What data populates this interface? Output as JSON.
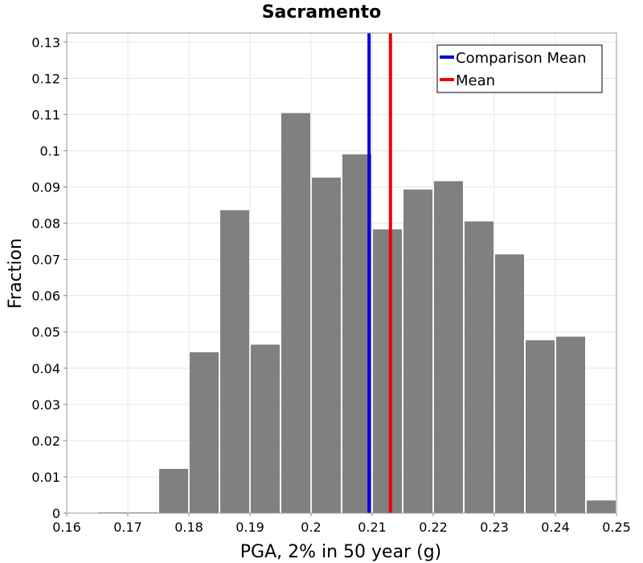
{
  "chart_data": {
    "type": "bar",
    "title": "Sacramento",
    "xlabel": "PGA, 2% in 50 year (g)",
    "ylabel": "Fraction",
    "xlim": [
      0.16,
      0.25
    ],
    "ylim": [
      0,
      0.1325
    ],
    "xticks": [
      "0.16",
      "0.17",
      "0.18",
      "0.19",
      "0.2",
      "0.21",
      "0.22",
      "0.23",
      "0.24",
      "0.25"
    ],
    "yticks": [
      "0",
      "0.01",
      "0.02",
      "0.03",
      "0.04",
      "0.05",
      "0.06",
      "0.07",
      "0.08",
      "0.09",
      "0.1",
      "0.11",
      "0.12",
      "0.13"
    ],
    "grid": true,
    "bin_width": 0.005,
    "bins": [
      {
        "x": 0.1625,
        "value": 0.0001
      },
      {
        "x": 0.1675,
        "value": 0.0002
      },
      {
        "x": 0.1725,
        "value": 0.0002
      },
      {
        "x": 0.1775,
        "value": 0.0122
      },
      {
        "x": 0.1825,
        "value": 0.0444
      },
      {
        "x": 0.1875,
        "value": 0.0836
      },
      {
        "x": 0.1925,
        "value": 0.0465
      },
      {
        "x": 0.1975,
        "value": 0.1104
      },
      {
        "x": 0.2025,
        "value": 0.0926
      },
      {
        "x": 0.2075,
        "value": 0.099
      },
      {
        "x": 0.2125,
        "value": 0.0783
      },
      {
        "x": 0.2175,
        "value": 0.0893
      },
      {
        "x": 0.2225,
        "value": 0.0916
      },
      {
        "x": 0.2275,
        "value": 0.0805
      },
      {
        "x": 0.2325,
        "value": 0.0714
      },
      {
        "x": 0.2375,
        "value": 0.0477
      },
      {
        "x": 0.2425,
        "value": 0.0487
      },
      {
        "x": 0.2475,
        "value": 0.0035
      }
    ],
    "bar_color": "#808080",
    "lines": [
      {
        "name": "Comparison Mean",
        "x": 0.2095,
        "color": "#0000dd"
      },
      {
        "name": "Mean",
        "x": 0.213,
        "color": "#ee0000"
      }
    ],
    "legend": {
      "position": "top-right"
    }
  }
}
